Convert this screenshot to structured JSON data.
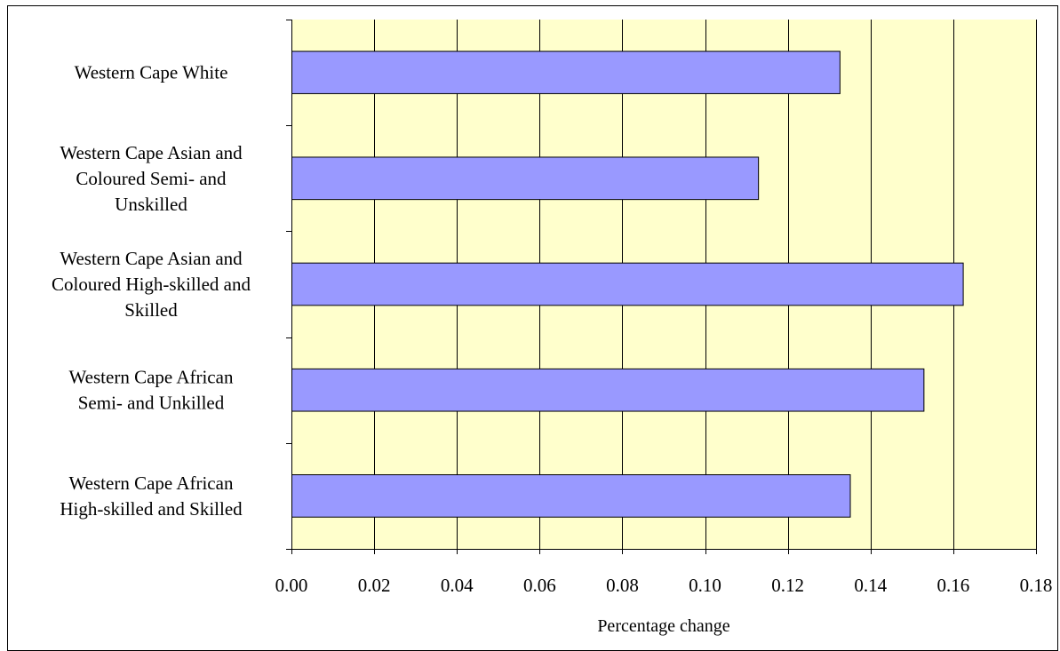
{
  "chart_data": {
    "type": "bar",
    "orientation": "horizontal",
    "title": "",
    "xlabel": "Percentage change",
    "ylabel": "",
    "xlim": [
      0,
      0.18
    ],
    "x_ticks": [
      "0.00",
      "0.02",
      "0.04",
      "0.06",
      "0.08",
      "0.10",
      "0.12",
      "0.14",
      "0.16",
      "0.18"
    ],
    "grid": "vertical",
    "legend": "none",
    "categories": [
      [
        "Western Cape White"
      ],
      [
        "Western Cape Asian and",
        "Coloured Semi- and",
        "Unskilled"
      ],
      [
        "Western Cape Asian and",
        "Coloured High-skilled and",
        "Skilled"
      ],
      [
        "Western Cape African",
        "Semi- and Unkilled"
      ],
      [
        "Western Cape African",
        "High-skilled and Skilled"
      ]
    ],
    "values": [
      0.1325,
      0.1128,
      0.1623,
      0.1528,
      0.135
    ],
    "colors": {
      "bar": "#9999ff",
      "plot_background": "#ffffcc",
      "grid": "#000000"
    }
  }
}
